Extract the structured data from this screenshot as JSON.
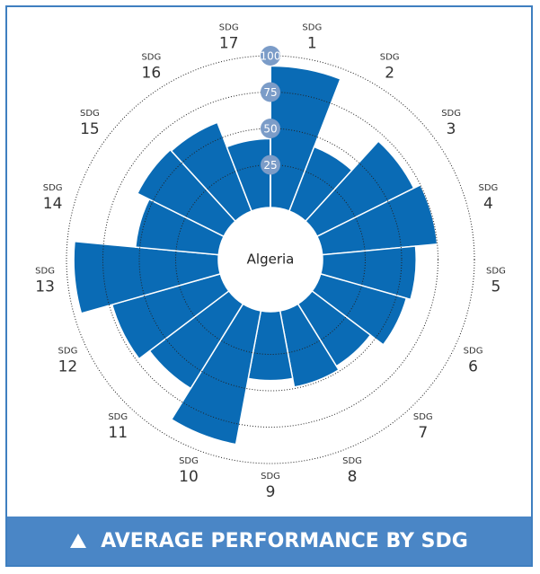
{
  "chart_data": {
    "type": "polar_bar",
    "center_label": "Algeria",
    "label_prefix": "SDG",
    "categories": [
      "1",
      "2",
      "3",
      "4",
      "5",
      "6",
      "7",
      "8",
      "9",
      "10",
      "11",
      "12",
      "13",
      "14",
      "15",
      "16",
      "17"
    ],
    "values": [
      93,
      43,
      70,
      75,
      60,
      57,
      46,
      49,
      43,
      89,
      64,
      73,
      95,
      53,
      62,
      61,
      43
    ],
    "color": "#0a6bb5",
    "ylim": [
      0,
      100
    ],
    "yticks": [
      25,
      50,
      75,
      100
    ],
    "grid": true
  },
  "footer": {
    "title": "AVERAGE PERFORMANCE BY SDG"
  }
}
